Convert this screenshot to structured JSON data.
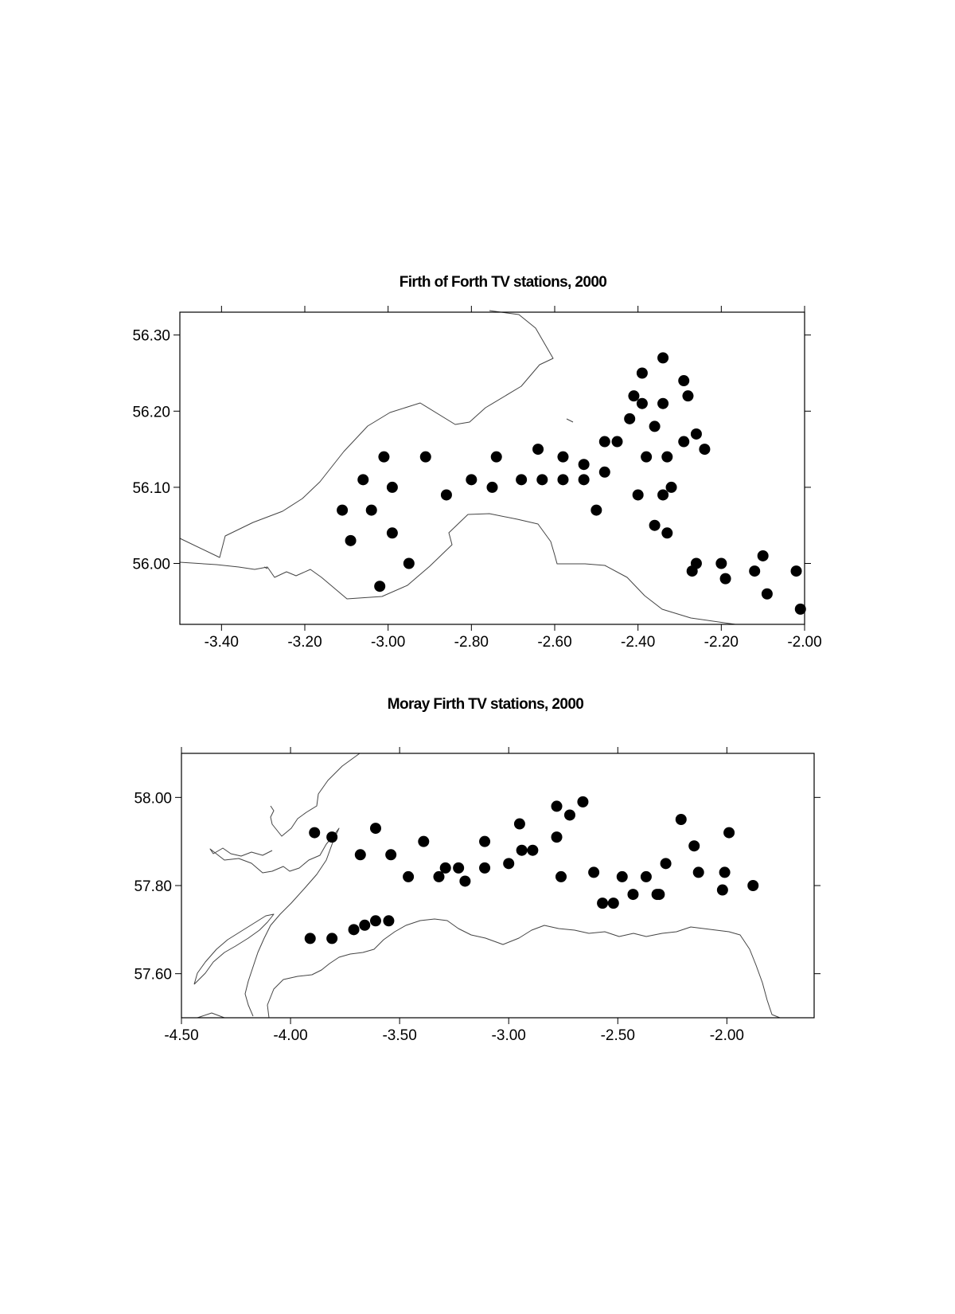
{
  "chart_data": [
    {
      "type": "scatter",
      "title": "Firth of Forth TV stations, 2000",
      "xlim": [
        -3.5,
        -2.0
      ],
      "ylim": [
        55.92,
        56.33
      ],
      "x_ticks": [
        -3.4,
        -3.2,
        -3.0,
        -2.8,
        -2.6,
        -2.4,
        -2.2,
        -2.0
      ],
      "x_tick_labels": [
        "-3.40",
        "-3.20",
        "-3.00",
        "-2.80",
        "-2.60",
        "-2.40",
        "-2.20",
        "-2.00"
      ],
      "y_ticks": [
        56.3,
        56.2,
        56.1,
        56.0
      ],
      "y_tick_labels": [
        "56.30",
        "56.20",
        "56.10",
        "56.00"
      ],
      "grid": false,
      "series": [
        {
          "marker_color": "#000000",
          "points": [
            [
              -3.11,
              56.07
            ],
            [
              -3.09,
              56.03
            ],
            [
              -3.06,
              56.11
            ],
            [
              -3.04,
              56.07
            ],
            [
              -3.01,
              56.14
            ],
            [
              -2.99,
              56.1
            ],
            [
              -2.99,
              56.04
            ],
            [
              -3.02,
              55.97
            ],
            [
              -2.95,
              56.0
            ],
            [
              -2.91,
              56.14
            ],
            [
              -2.86,
              56.09
            ],
            [
              -2.8,
              56.11
            ],
            [
              -2.75,
              56.1
            ],
            [
              -2.74,
              56.14
            ],
            [
              -2.68,
              56.11
            ],
            [
              -2.64,
              56.15
            ],
            [
              -2.63,
              56.11
            ],
            [
              -2.58,
              56.14
            ],
            [
              -2.58,
              56.11
            ],
            [
              -2.53,
              56.11
            ],
            [
              -2.53,
              56.13
            ],
            [
              -2.5,
              56.07
            ],
            [
              -2.48,
              56.16
            ],
            [
              -2.48,
              56.12
            ],
            [
              -2.45,
              56.16
            ],
            [
              -2.42,
              56.19
            ],
            [
              -2.41,
              56.22
            ],
            [
              -2.4,
              56.09
            ],
            [
              -2.39,
              56.25
            ],
            [
              -2.39,
              56.21
            ],
            [
              -2.38,
              56.14
            ],
            [
              -2.36,
              56.18
            ],
            [
              -2.36,
              56.05
            ],
            [
              -2.34,
              56.27
            ],
            [
              -2.34,
              56.21
            ],
            [
              -2.34,
              56.09
            ],
            [
              -2.33,
              56.14
            ],
            [
              -2.33,
              56.04
            ],
            [
              -2.32,
              56.1
            ],
            [
              -2.29,
              56.24
            ],
            [
              -2.29,
              56.16
            ],
            [
              -2.28,
              56.22
            ],
            [
              -2.27,
              55.99
            ],
            [
              -2.26,
              56.17
            ],
            [
              -2.26,
              56.0
            ],
            [
              -2.24,
              56.15
            ],
            [
              -2.2,
              56.0
            ],
            [
              -2.19,
              55.98
            ],
            [
              -2.12,
              55.99
            ],
            [
              -2.1,
              56.01
            ],
            [
              -2.09,
              55.96
            ],
            [
              -2.02,
              55.99
            ],
            [
              -2.01,
              55.94
            ]
          ]
        }
      ]
    },
    {
      "type": "scatter",
      "title": "Moray Firth TV stations, 2000",
      "xlim": [
        -4.5,
        -1.6
      ],
      "ylim": [
        57.5,
        58.1
      ],
      "x_ticks": [
        -4.5,
        -4.0,
        -3.5,
        -3.0,
        -2.5,
        -2.0
      ],
      "x_tick_labels": [
        "-4.50",
        "-4.00",
        "-3.50",
        "-3.00",
        "-2.50",
        "-2.00"
      ],
      "y_ticks": [
        58.0,
        57.8,
        57.6
      ],
      "y_tick_labels": [
        "58.00",
        "57.80",
        "57.60"
      ],
      "grid": false,
      "series": [
        {
          "marker_color": "#000000",
          "points": [
            [
              -3.89,
              57.92
            ],
            [
              -3.81,
              57.91
            ],
            [
              -3.68,
              57.87
            ],
            [
              -3.61,
              57.93
            ],
            [
              -3.54,
              57.87
            ],
            [
              -3.39,
              57.9
            ],
            [
              -3.46,
              57.82
            ],
            [
              -3.32,
              57.82
            ],
            [
              -3.29,
              57.84
            ],
            [
              -3.23,
              57.84
            ],
            [
              -3.2,
              57.81
            ],
            [
              -3.11,
              57.9
            ],
            [
              -3.11,
              57.84
            ],
            [
              -3.0,
              57.85
            ],
            [
              -2.95,
              57.94
            ],
            [
              -2.94,
              57.88
            ],
            [
              -2.89,
              57.88
            ],
            [
              -2.78,
              57.98
            ],
            [
              -2.78,
              57.91
            ],
            [
              -2.76,
              57.82
            ],
            [
              -2.72,
              57.96
            ],
            [
              -2.66,
              57.99
            ],
            [
              -2.61,
              57.83
            ],
            [
              -2.57,
              57.76
            ],
            [
              -2.52,
              57.76
            ],
            [
              -2.48,
              57.82
            ],
            [
              -2.43,
              57.78
            ],
            [
              -2.37,
              57.82
            ],
            [
              -2.32,
              57.78
            ],
            [
              -2.31,
              57.78
            ],
            [
              -2.28,
              57.85
            ],
            [
              -2.21,
              57.95
            ],
            [
              -2.15,
              57.89
            ],
            [
              -2.13,
              57.83
            ],
            [
              -2.02,
              57.79
            ],
            [
              -2.01,
              57.83
            ],
            [
              -1.99,
              57.92
            ],
            [
              -1.88,
              57.8
            ],
            [
              -3.91,
              57.68
            ],
            [
              -3.81,
              57.68
            ],
            [
              -3.71,
              57.7
            ],
            [
              -3.66,
              57.71
            ],
            [
              -3.61,
              57.72
            ],
            [
              -3.55,
              57.72
            ]
          ]
        }
      ]
    }
  ]
}
